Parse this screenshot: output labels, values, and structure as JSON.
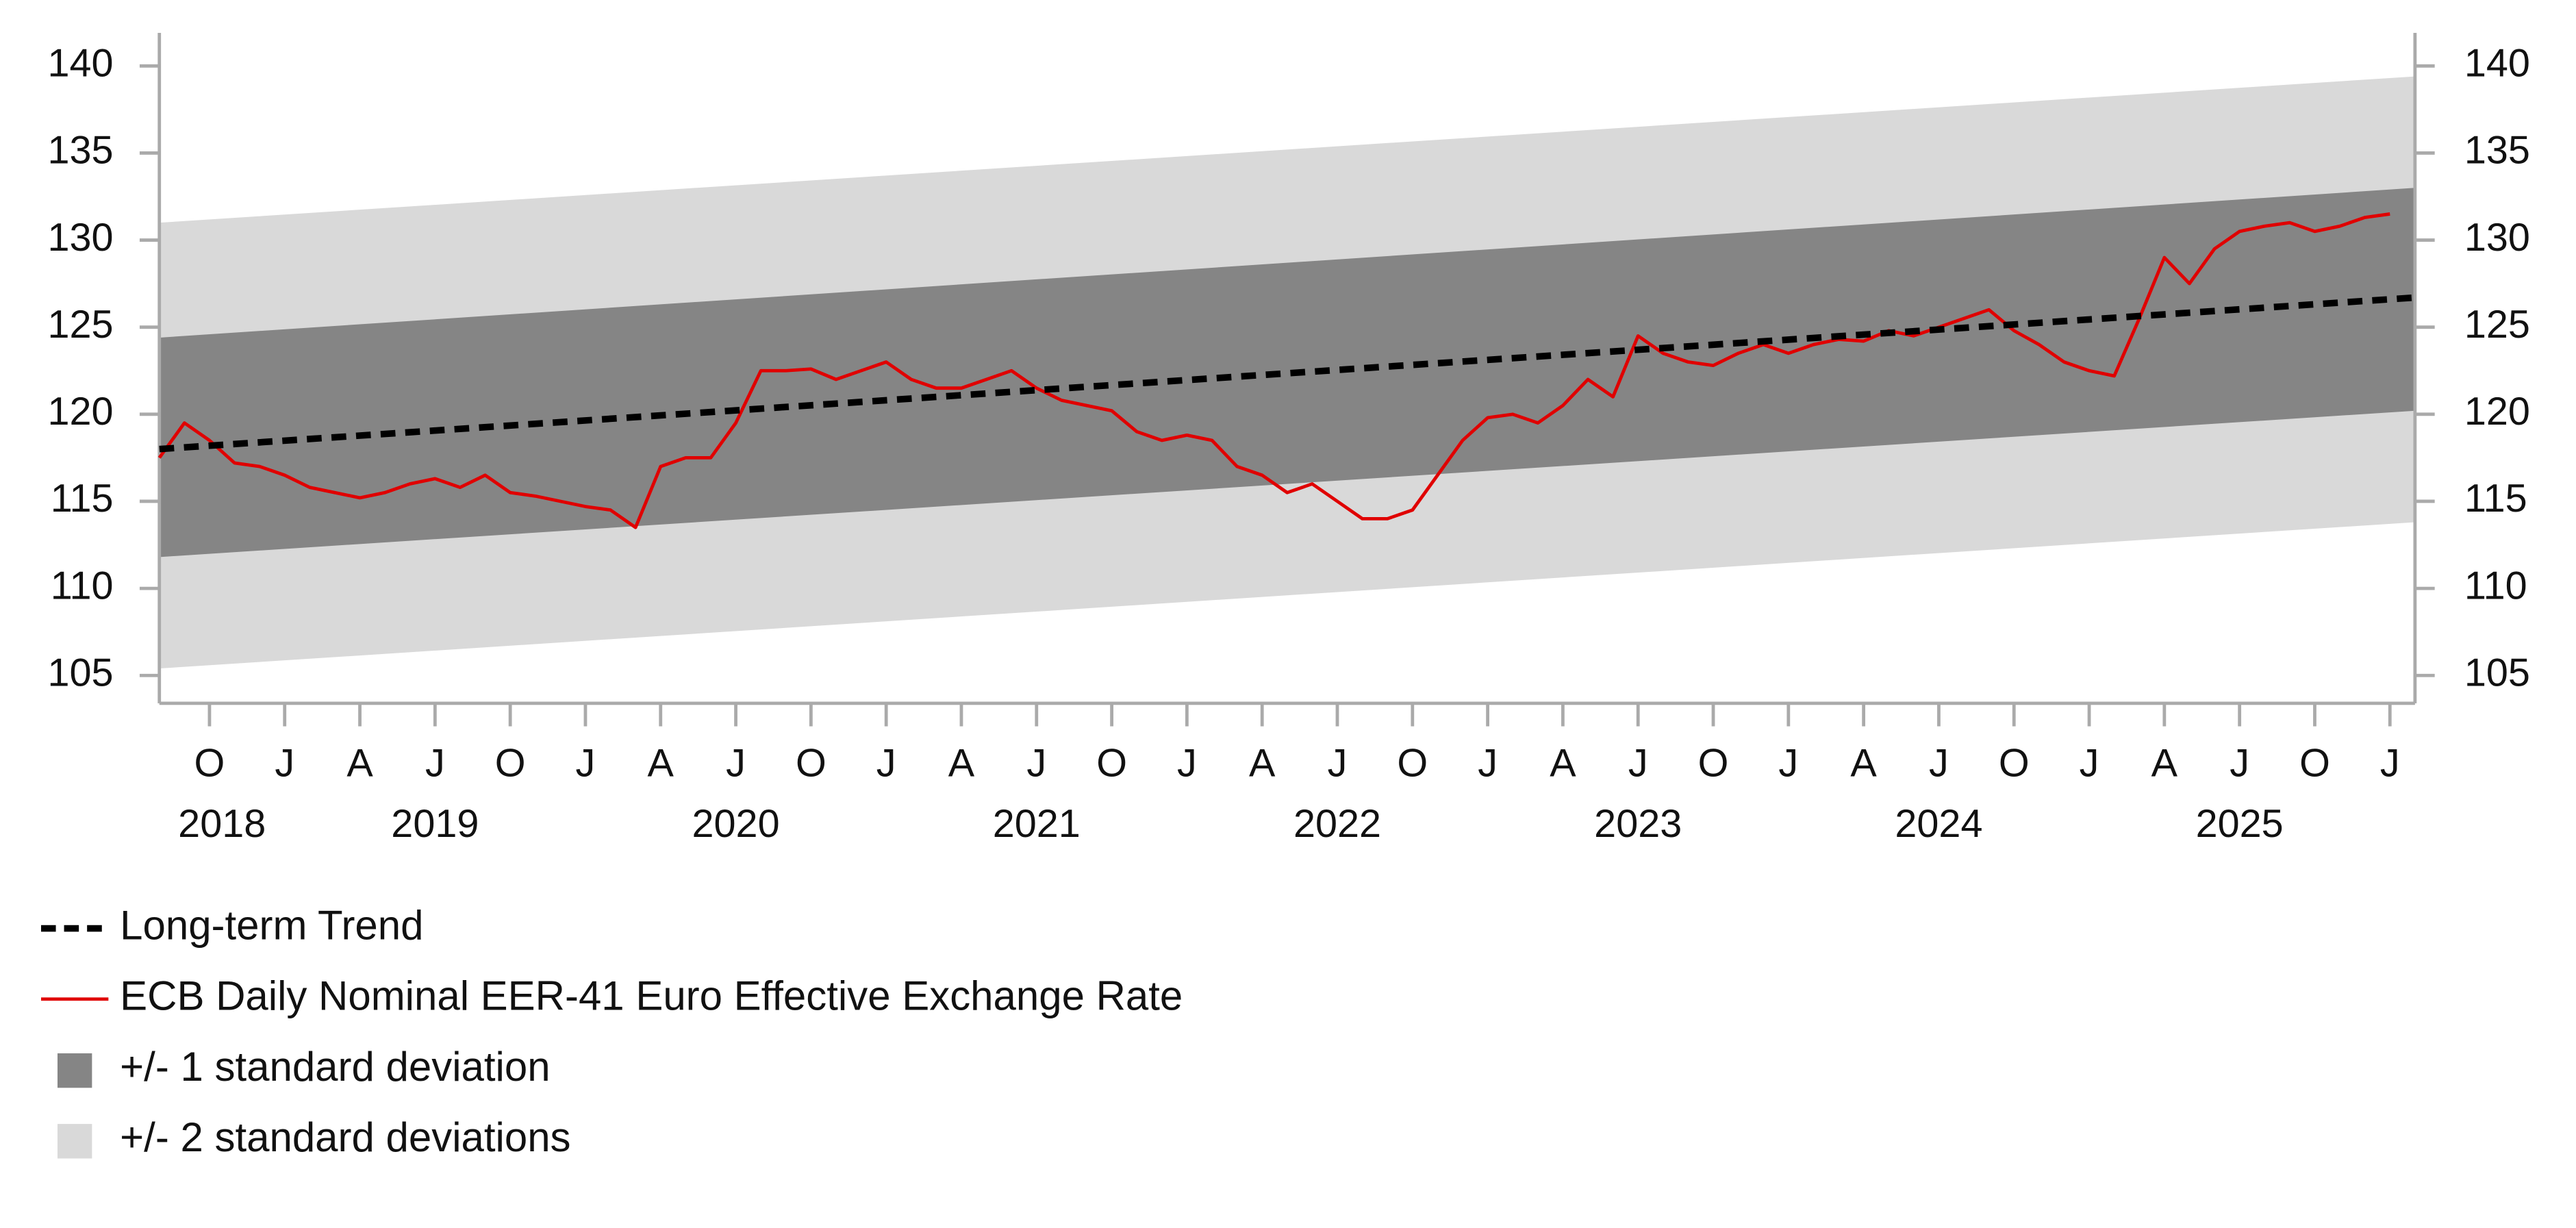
{
  "chart_data": {
    "type": "line",
    "x": [
      "2018-08",
      "2018-09",
      "2018-10",
      "2018-11",
      "2018-12",
      "2019-01",
      "2019-02",
      "2019-03",
      "2019-04",
      "2019-05",
      "2019-06",
      "2019-07",
      "2019-08",
      "2019-09",
      "2019-10",
      "2019-11",
      "2019-12",
      "2020-01",
      "2020-02",
      "2020-03",
      "2020-04",
      "2020-05",
      "2020-06",
      "2020-07",
      "2020-08",
      "2020-09",
      "2020-10",
      "2020-11",
      "2020-12",
      "2021-01",
      "2021-02",
      "2021-03",
      "2021-04",
      "2021-05",
      "2021-06",
      "2021-07",
      "2021-08",
      "2021-09",
      "2021-10",
      "2021-11",
      "2021-12",
      "2022-01",
      "2022-02",
      "2022-03",
      "2022-04",
      "2022-05",
      "2022-06",
      "2022-07",
      "2022-08",
      "2022-09",
      "2022-10",
      "2022-11",
      "2022-12",
      "2023-01",
      "2023-02",
      "2023-03",
      "2023-04",
      "2023-05",
      "2023-06",
      "2023-07",
      "2023-08",
      "2023-09",
      "2023-10",
      "2023-11",
      "2023-12",
      "2024-01",
      "2024-02",
      "2024-03",
      "2024-04",
      "2024-05",
      "2024-06",
      "2024-07",
      "2024-08",
      "2024-09",
      "2024-10",
      "2024-11",
      "2024-12",
      "2025-01",
      "2025-02",
      "2025-03",
      "2025-04",
      "2025-05",
      "2025-06",
      "2025-07",
      "2025-08",
      "2025-09",
      "2025-10",
      "2025-11",
      "2025-12",
      "2026-01"
    ],
    "series": [
      {
        "name": "ECB Daily Nominal EER-41 Euro Effective Exchange Rate",
        "color": "#e00000",
        "values": [
          117.5,
          119.5,
          118.5,
          117.2,
          117.0,
          116.5,
          115.8,
          115.5,
          115.2,
          115.5,
          116.0,
          116.3,
          115.8,
          116.5,
          115.5,
          115.3,
          115.0,
          114.7,
          114.5,
          113.5,
          117.0,
          117.5,
          117.5,
          119.5,
          122.5,
          122.5,
          122.6,
          122.0,
          122.5,
          123.0,
          122.0,
          121.5,
          121.5,
          122.0,
          122.5,
          121.5,
          120.8,
          120.5,
          120.2,
          119.0,
          118.5,
          118.8,
          118.5,
          117.0,
          116.5,
          115.5,
          116.0,
          115.0,
          114.0,
          114.0,
          114.5,
          116.5,
          118.5,
          119.8,
          120.0,
          119.5,
          120.5,
          122.0,
          121.0,
          124.5,
          123.5,
          123.0,
          122.8,
          123.5,
          124.0,
          123.5,
          124.0,
          124.3,
          124.2,
          124.8,
          124.5,
          125.0,
          125.5,
          126.0,
          124.8,
          124.0,
          123.0,
          122.5,
          122.2,
          125.5,
          129.0,
          127.5,
          129.5,
          130.5,
          130.8,
          131.0,
          130.5,
          130.8,
          131.3,
          131.5
        ]
      }
    ],
    "trend": {
      "name": "Long-term Trend",
      "color": "#000000",
      "x": [
        "2018-08",
        "2026-02"
      ],
      "values": [
        118.0,
        126.7
      ]
    },
    "bands": [
      {
        "name": "+/- 2 standard deviations",
        "color": "#d9d9d9",
        "x": [
          "2018-08",
          "2026-02"
        ],
        "lower": [
          105.4,
          113.8
        ],
        "upper": [
          131.0,
          139.4
        ]
      },
      {
        "name": "+/- 1 standard deviation",
        "color": "#858585",
        "x": [
          "2018-08",
          "2026-02"
        ],
        "lower": [
          111.8,
          120.2
        ],
        "upper": [
          124.4,
          133.0
        ]
      }
    ],
    "xlim": [
      "2018-08",
      "2026-02"
    ],
    "xticks": [
      {
        "value": "2018-10",
        "label": "O"
      },
      {
        "value": "2019-01",
        "label": "J"
      },
      {
        "value": "2019-04",
        "label": "A"
      },
      {
        "value": "2019-07",
        "label": "J"
      },
      {
        "value": "2019-10",
        "label": "O"
      },
      {
        "value": "2020-01",
        "label": "J"
      },
      {
        "value": "2020-04",
        "label": "A"
      },
      {
        "value": "2020-07",
        "label": "J"
      },
      {
        "value": "2020-10",
        "label": "O"
      },
      {
        "value": "2021-01",
        "label": "J"
      },
      {
        "value": "2021-04",
        "label": "A"
      },
      {
        "value": "2021-07",
        "label": "J"
      },
      {
        "value": "2021-10",
        "label": "O"
      },
      {
        "value": "2022-01",
        "label": "J"
      },
      {
        "value": "2022-04",
        "label": "A"
      },
      {
        "value": "2022-07",
        "label": "J"
      },
      {
        "value": "2022-10",
        "label": "O"
      },
      {
        "value": "2023-01",
        "label": "J"
      },
      {
        "value": "2023-04",
        "label": "A"
      },
      {
        "value": "2023-07",
        "label": "J"
      },
      {
        "value": "2023-10",
        "label": "O"
      },
      {
        "value": "2024-01",
        "label": "J"
      },
      {
        "value": "2024-04",
        "label": "A"
      },
      {
        "value": "2024-07",
        "label": "J"
      },
      {
        "value": "2024-10",
        "label": "O"
      },
      {
        "value": "2025-01",
        "label": "J"
      },
      {
        "value": "2025-04",
        "label": "A"
      },
      {
        "value": "2025-07",
        "label": "J"
      },
      {
        "value": "2025-10",
        "label": "O"
      },
      {
        "value": "2026-01",
        "label": "J"
      }
    ],
    "years": [
      "2018",
      "2019",
      "2020",
      "2021",
      "2022",
      "2023",
      "2024",
      "2025"
    ],
    "ylim": [
      103.4,
      141.9
    ],
    "yticks": [
      105,
      110,
      115,
      120,
      125,
      130,
      135,
      140
    ],
    "y2lim": [
      103.4,
      141.9
    ],
    "y2ticks": [
      105,
      110,
      115,
      120,
      125,
      130,
      135,
      140
    ]
  }
}
